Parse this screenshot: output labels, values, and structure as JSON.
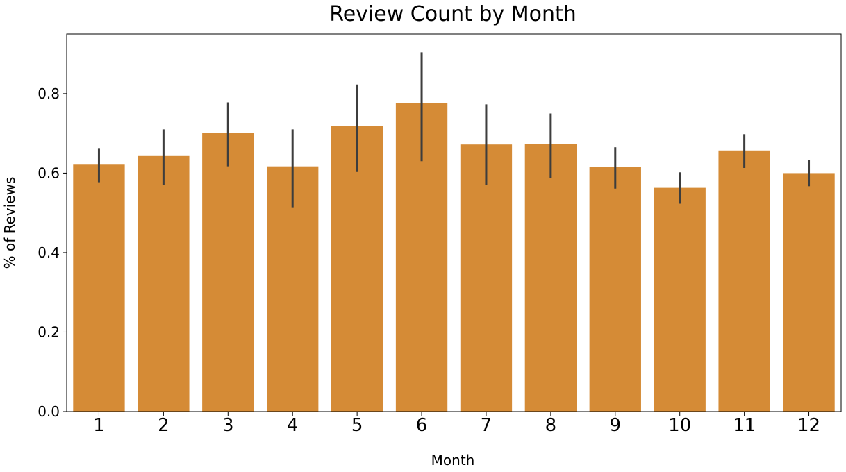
{
  "chart_data": {
    "type": "bar",
    "title": "Review Count by Month",
    "xlabel": "Month",
    "ylabel": "% of Reviews",
    "categories": [
      "1",
      "2",
      "3",
      "4",
      "5",
      "6",
      "7",
      "8",
      "9",
      "10",
      "11",
      "12"
    ],
    "values": [
      0.623,
      0.643,
      0.702,
      0.617,
      0.718,
      0.777,
      0.672,
      0.673,
      0.615,
      0.563,
      0.657,
      0.6
    ],
    "error_low": [
      0.577,
      0.57,
      0.617,
      0.514,
      0.603,
      0.63,
      0.57,
      0.587,
      0.561,
      0.523,
      0.613,
      0.567
    ],
    "error_high": [
      0.663,
      0.71,
      0.778,
      0.71,
      0.823,
      0.904,
      0.773,
      0.75,
      0.665,
      0.602,
      0.698,
      0.633
    ],
    "ylim": [
      0,
      0.95
    ],
    "yticks": [
      "0.0",
      "0.2",
      "0.4",
      "0.6",
      "0.8"
    ],
    "ytick_values": [
      0,
      0.2,
      0.4,
      0.6,
      0.8
    ],
    "grid": false,
    "bar_color": "#d58b36",
    "errorbar_color": "#3d3d3d"
  }
}
